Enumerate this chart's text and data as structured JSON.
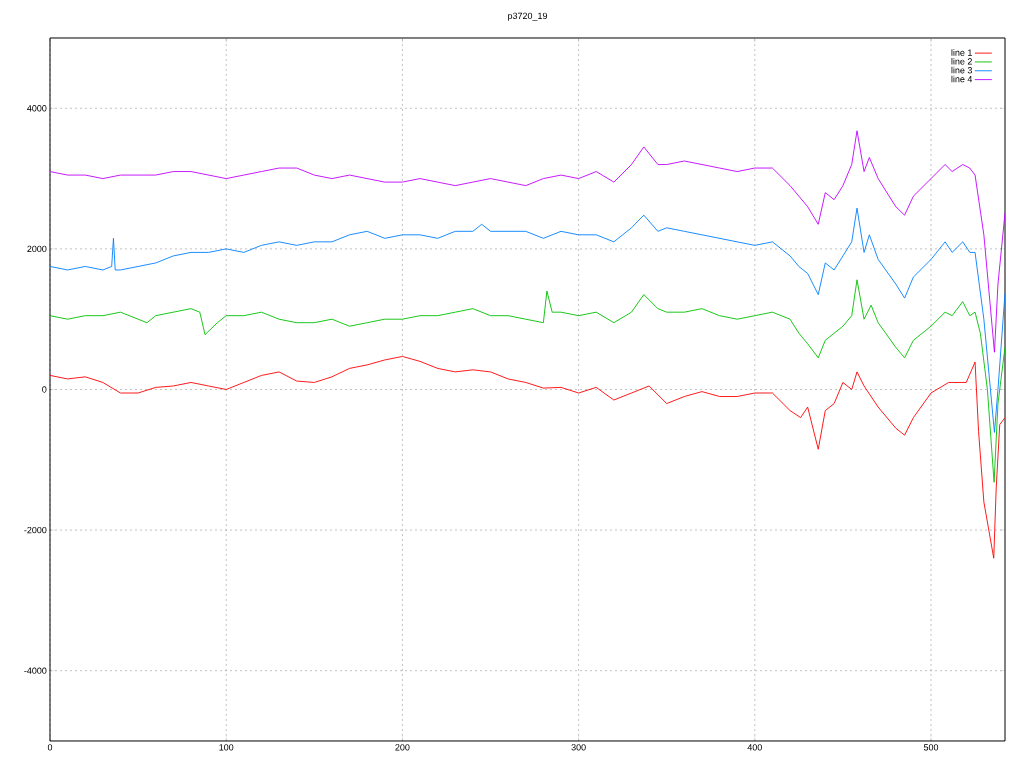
{
  "chart_data": {
    "type": "line",
    "title": "p3720_19",
    "xlim": [
      0,
      542
    ],
    "ylim": [
      -5000,
      5000
    ],
    "xticks": [
      0,
      100,
      200,
      300,
      400,
      500
    ],
    "yticks": [
      -4000,
      -2000,
      0,
      2000,
      4000
    ],
    "grid": true,
    "legend": "top right",
    "series": [
      {
        "name": "line 1",
        "color": "#ff0000",
        "x": [
          0,
          10,
          20,
          30,
          40,
          50,
          60,
          70,
          80,
          90,
          100,
          110,
          120,
          130,
          140,
          150,
          160,
          170,
          180,
          190,
          200,
          210,
          220,
          230,
          240,
          250,
          260,
          270,
          280,
          290,
          300,
          310,
          320,
          330,
          340,
          350,
          360,
          370,
          380,
          390,
          400,
          410,
          420,
          426,
          430,
          436,
          440,
          445,
          450,
          455,
          458,
          462,
          470,
          480,
          485,
          490,
          500,
          510,
          520,
          525,
          527,
          530,
          535.6,
          537,
          539,
          542
        ],
        "values": [
          200,
          150,
          180,
          100,
          -50,
          -50,
          30,
          50,
          100,
          50,
          0,
          100,
          200,
          250,
          120,
          100,
          180,
          300,
          350,
          420,
          470,
          400,
          300,
          250,
          280,
          250,
          150,
          100,
          20,
          30,
          -50,
          30,
          -150,
          -50,
          50,
          -200,
          -100,
          -30,
          -100,
          -100,
          -50,
          -50,
          -300,
          -400,
          -250,
          -850,
          -300,
          -200,
          100,
          0,
          250,
          50,
          -250,
          -550,
          -650,
          -400,
          -50,
          100,
          100,
          390,
          -600,
          -1600,
          -2400,
          -1400,
          -500,
          -400
        ]
      },
      {
        "name": "line 2",
        "color": "#00c000",
        "x": [
          0,
          10,
          20,
          30,
          40,
          50,
          55,
          60,
          70,
          80,
          85,
          88,
          95,
          100,
          110,
          120,
          130,
          140,
          150,
          160,
          170,
          180,
          190,
          200,
          210,
          220,
          230,
          240,
          250,
          260,
          270,
          280,
          282,
          285,
          290,
          300,
          310,
          320,
          330,
          337,
          345,
          350,
          360,
          370,
          380,
          390,
          400,
          410,
          420,
          425,
          430,
          436,
          440,
          445,
          450,
          455,
          458,
          462,
          466,
          470,
          480,
          485,
          490,
          500,
          508,
          512,
          518,
          522,
          525,
          528,
          532,
          535.8,
          538,
          542
        ],
        "values": [
          1050,
          1000,
          1050,
          1050,
          1100,
          1000,
          950,
          1050,
          1100,
          1150,
          1100,
          780,
          950,
          1050,
          1050,
          1100,
          1000,
          950,
          950,
          1000,
          900,
          950,
          1000,
          1000,
          1050,
          1050,
          1100,
          1150,
          1050,
          1050,
          1000,
          950,
          1400,
          1100,
          1100,
          1050,
          1100,
          950,
          1100,
          1350,
          1150,
          1100,
          1100,
          1150,
          1050,
          1000,
          1050,
          1100,
          1000,
          800,
          650,
          450,
          700,
          800,
          900,
          1050,
          1560,
          1000,
          1200,
          950,
          600,
          450,
          700,
          900,
          1100,
          1050,
          1250,
          1050,
          1100,
          800,
          0,
          -1320,
          -200,
          600
        ]
      },
      {
        "name": "line 3",
        "color": "#0080ff",
        "x": [
          0,
          10,
          20,
          30,
          35,
          36,
          37,
          40,
          50,
          60,
          70,
          80,
          90,
          100,
          110,
          120,
          130,
          140,
          150,
          160,
          170,
          180,
          190,
          200,
          210,
          220,
          230,
          240,
          245,
          250,
          260,
          270,
          280,
          290,
          300,
          310,
          320,
          330,
          337,
          345,
          350,
          360,
          370,
          380,
          390,
          400,
          410,
          420,
          425,
          430,
          436,
          440,
          445,
          450,
          455,
          458,
          462,
          465,
          470,
          480,
          485,
          490,
          500,
          508,
          512,
          518,
          522,
          525,
          530,
          536,
          538,
          542
        ],
        "values": [
          1750,
          1700,
          1750,
          1700,
          1750,
          2150,
          1700,
          1700,
          1750,
          1800,
          1900,
          1950,
          1950,
          2000,
          1950,
          2050,
          2100,
          2050,
          2100,
          2100,
          2200,
          2250,
          2150,
          2200,
          2200,
          2150,
          2250,
          2250,
          2350,
          2250,
          2250,
          2250,
          2150,
          2250,
          2200,
          2200,
          2100,
          2300,
          2480,
          2250,
          2300,
          2250,
          2200,
          2150,
          2100,
          2050,
          2100,
          1900,
          1750,
          1650,
          1350,
          1800,
          1700,
          1900,
          2100,
          2580,
          1950,
          2200,
          1850,
          1500,
          1300,
          1600,
          1850,
          2100,
          1950,
          2100,
          1950,
          1950,
          1000,
          -610,
          0,
          1370
        ]
      },
      {
        "name": "line 4",
        "color": "#c000ff",
        "x": [
          0,
          10,
          20,
          30,
          40,
          50,
          60,
          70,
          80,
          90,
          100,
          110,
          120,
          130,
          140,
          150,
          160,
          170,
          180,
          190,
          200,
          210,
          220,
          230,
          240,
          250,
          260,
          270,
          280,
          290,
          300,
          310,
          320,
          330,
          337,
          345,
          350,
          360,
          370,
          380,
          390,
          400,
          410,
          420,
          425,
          430,
          436,
          440,
          445,
          450,
          455,
          458,
          462,
          465,
          470,
          480,
          485,
          490,
          500,
          508,
          512,
          518,
          522,
          525,
          530,
          536,
          538,
          542
        ],
        "values": [
          3100,
          3050,
          3050,
          3000,
          3050,
          3050,
          3050,
          3100,
          3100,
          3050,
          3000,
          3050,
          3100,
          3150,
          3150,
          3050,
          3000,
          3050,
          3000,
          2950,
          2950,
          3000,
          2950,
          2900,
          2950,
          3000,
          2950,
          2900,
          3000,
          3050,
          3000,
          3100,
          2950,
          3200,
          3450,
          3200,
          3200,
          3250,
          3200,
          3150,
          3100,
          3150,
          3150,
          2900,
          2750,
          2600,
          2350,
          2800,
          2700,
          2900,
          3200,
          3680,
          3100,
          3300,
          3000,
          2600,
          2480,
          2750,
          3000,
          3200,
          3100,
          3200,
          3150,
          3050,
          2200,
          530,
          1500,
          2510
        ]
      }
    ]
  }
}
